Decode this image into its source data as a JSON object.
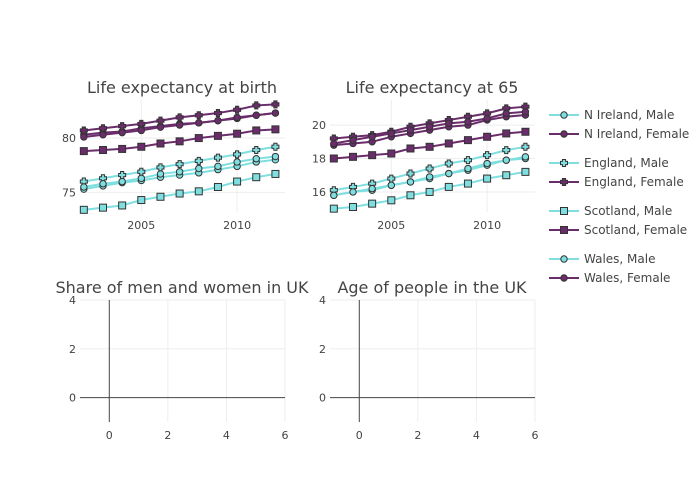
{
  "colors": {
    "male": "#7fdfe0",
    "female": "#6b2c6b",
    "marker_outline": "#333333"
  },
  "legend": [
    {
      "label": "N Ireland, Male",
      "sex": "male",
      "symbol": "circle"
    },
    {
      "label": "N Ireland, Female",
      "sex": "female",
      "symbol": "circle"
    },
    {
      "label": "England, Male",
      "sex": "male",
      "symbol": "cross"
    },
    {
      "label": "England, Female",
      "sex": "female",
      "symbol": "cross"
    },
    {
      "label": "Scotland, Male",
      "sex": "male",
      "symbol": "square"
    },
    {
      "label": "Scotland, Female",
      "sex": "female",
      "symbol": "square"
    },
    {
      "label": "Wales, Male",
      "sex": "male",
      "symbol": "circle"
    },
    {
      "label": "Wales, Female",
      "sex": "female",
      "symbol": "circle"
    }
  ],
  "chart_data": [
    {
      "type": "line",
      "title": "Life expectancy at birth",
      "x": [
        2002,
        2003,
        2004,
        2005,
        2006,
        2007,
        2008,
        2009,
        2010,
        2011,
        2012
      ],
      "xlim": [
        2001.8,
        2012.5
      ],
      "ylim": [
        73.2,
        83.5
      ],
      "xticks": [
        2005,
        2010
      ],
      "yticks": [
        75,
        80
      ],
      "series": [
        {
          "name": "N Ireland, Male",
          "sex": "male",
          "symbol": "circle",
          "values": [
            75.3,
            75.6,
            75.9,
            76.1,
            76.4,
            76.6,
            76.8,
            77.1,
            77.4,
            77.8,
            78.0
          ]
        },
        {
          "name": "N Ireland, Female",
          "sex": "female",
          "symbol": "circle",
          "values": [
            80.3,
            80.5,
            80.6,
            80.9,
            81.1,
            81.3,
            81.4,
            81.6,
            81.8,
            82.1,
            82.3
          ]
        },
        {
          "name": "England, Male",
          "sex": "male",
          "symbol": "cross",
          "values": [
            76.0,
            76.3,
            76.6,
            76.9,
            77.3,
            77.6,
            77.9,
            78.2,
            78.5,
            78.9,
            79.2
          ]
        },
        {
          "name": "England, Female",
          "sex": "female",
          "symbol": "cross",
          "values": [
            80.7,
            80.9,
            81.1,
            81.3,
            81.6,
            81.9,
            82.1,
            82.3,
            82.6,
            83.0,
            83.1
          ]
        },
        {
          "name": "Scotland, Male",
          "sex": "male",
          "symbol": "square",
          "values": [
            73.4,
            73.6,
            73.8,
            74.3,
            74.6,
            74.9,
            75.1,
            75.5,
            76.0,
            76.4,
            76.7
          ]
        },
        {
          "name": "Scotland, Female",
          "sex": "female",
          "symbol": "square",
          "values": [
            78.8,
            78.9,
            79.0,
            79.2,
            79.5,
            79.7,
            80.0,
            80.2,
            80.4,
            80.7,
            80.8
          ]
        },
        {
          "name": "Wales, Male",
          "sex": "male",
          "symbol": "circle",
          "values": [
            75.5,
            75.8,
            76.0,
            76.3,
            76.7,
            76.9,
            77.2,
            77.4,
            77.8,
            78.1,
            78.3
          ]
        },
        {
          "name": "Wales, Female",
          "sex": "female",
          "symbol": "circle",
          "values": [
            80.1,
            80.3,
            80.5,
            80.7,
            81.0,
            81.2,
            81.4,
            81.6,
            81.9,
            82.1,
            82.3
          ]
        }
      ]
    },
    {
      "type": "line",
      "title": "Life expectancy at 65",
      "x": [
        2002,
        2003,
        2004,
        2005,
        2006,
        2007,
        2008,
        2009,
        2010,
        2011,
        2012
      ],
      "xlim": [
        2001.8,
        2012.5
      ],
      "ylim": [
        14.8,
        21.5
      ],
      "xticks": [
        2005,
        2010
      ],
      "yticks": [
        16,
        18,
        20
      ],
      "series": [
        {
          "name": "N Ireland, Male",
          "sex": "male",
          "symbol": "circle",
          "values": [
            15.8,
            16.0,
            16.1,
            16.4,
            16.6,
            16.8,
            17.1,
            17.3,
            17.6,
            17.9,
            18.0
          ]
        },
        {
          "name": "N Ireland, Female",
          "sex": "female",
          "symbol": "circle",
          "values": [
            18.8,
            18.9,
            19.0,
            19.3,
            19.5,
            19.7,
            19.9,
            20.0,
            20.3,
            20.5,
            20.6
          ]
        },
        {
          "name": "England, Male",
          "sex": "male",
          "symbol": "cross",
          "values": [
            16.1,
            16.3,
            16.5,
            16.8,
            17.1,
            17.4,
            17.7,
            17.9,
            18.2,
            18.5,
            18.7
          ]
        },
        {
          "name": "England, Female",
          "sex": "female",
          "symbol": "cross",
          "values": [
            19.2,
            19.3,
            19.4,
            19.6,
            19.9,
            20.1,
            20.3,
            20.5,
            20.7,
            21.0,
            21.1
          ]
        },
        {
          "name": "Scotland, Male",
          "sex": "male",
          "symbol": "square",
          "values": [
            15.0,
            15.1,
            15.3,
            15.5,
            15.8,
            16.0,
            16.3,
            16.5,
            16.8,
            17.0,
            17.2
          ]
        },
        {
          "name": "Scotland, Female",
          "sex": "female",
          "symbol": "square",
          "values": [
            18.0,
            18.1,
            18.2,
            18.3,
            18.6,
            18.7,
            18.9,
            19.1,
            19.3,
            19.5,
            19.6
          ]
        },
        {
          "name": "Wales, Male",
          "sex": "male",
          "symbol": "circle",
          "values": [
            15.8,
            16.0,
            16.2,
            16.4,
            16.6,
            16.9,
            17.1,
            17.4,
            17.7,
            17.9,
            18.1
          ]
        },
        {
          "name": "Wales, Female",
          "sex": "female",
          "symbol": "circle",
          "values": [
            18.9,
            19.1,
            19.3,
            19.5,
            19.7,
            19.9,
            20.1,
            20.2,
            20.4,
            20.7,
            20.8
          ]
        }
      ]
    },
    {
      "type": "line",
      "title": "Share of men and women in UK",
      "xlim": [
        -1,
        6
      ],
      "ylim": [
        -1,
        4
      ],
      "xticks": [
        0,
        2,
        4,
        6
      ],
      "yticks": [
        0,
        2,
        4
      ],
      "series": []
    },
    {
      "type": "line",
      "title": "Age of people in the UK",
      "xlim": [
        -1,
        6
      ],
      "ylim": [
        -1,
        4
      ],
      "xticks": [
        0,
        2,
        4,
        6
      ],
      "yticks": [
        0,
        2,
        4
      ],
      "series": []
    }
  ]
}
